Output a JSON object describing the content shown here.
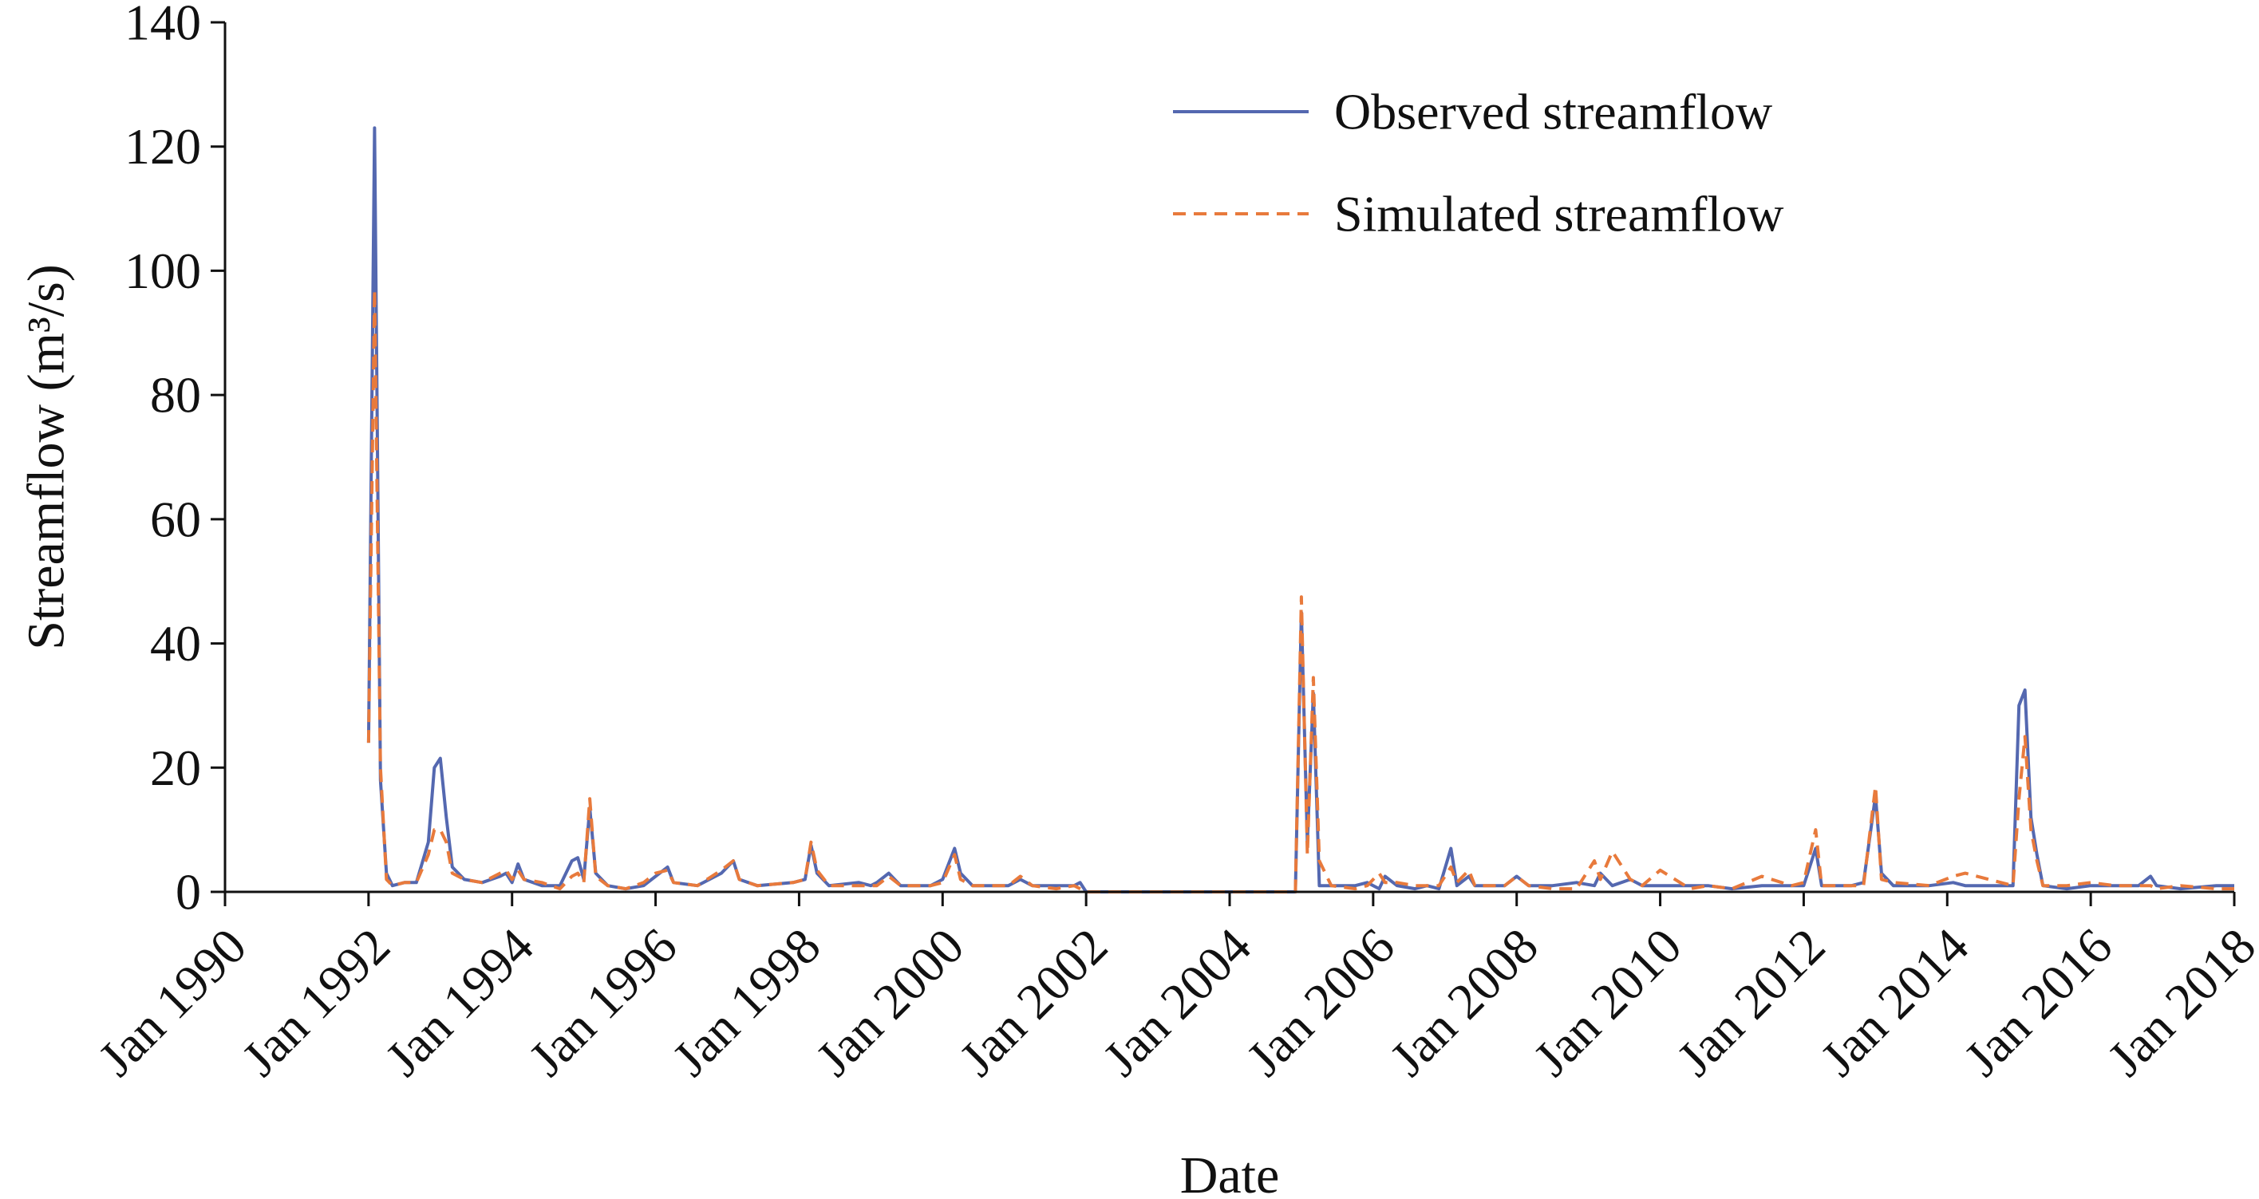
{
  "chart_data": {
    "type": "line",
    "xlabel": "Date",
    "ylabel": "Streamflow (m³/s)",
    "xlim": [
      "1990-01",
      "2018-01"
    ],
    "ylim": [
      0,
      140
    ],
    "y_ticks": [
      0,
      20,
      40,
      60,
      80,
      100,
      120,
      140
    ],
    "x_ticks": [
      {
        "date": "1990-01",
        "label": "Jan 1990"
      },
      {
        "date": "1992-01",
        "label": "Jan 1992"
      },
      {
        "date": "1994-01",
        "label": "Jan 1994"
      },
      {
        "date": "1996-01",
        "label": "Jan 1996"
      },
      {
        "date": "1998-01",
        "label": "Jan 1998"
      },
      {
        "date": "2000-01",
        "label": "Jan 2000"
      },
      {
        "date": "2002-01",
        "label": "Jan 2002"
      },
      {
        "date": "2004-01",
        "label": "Jan 2004"
      },
      {
        "date": "2006-01",
        "label": "Jan 2006"
      },
      {
        "date": "2008-01",
        "label": "Jan 2008"
      },
      {
        "date": "2010-01",
        "label": "Jan 2010"
      },
      {
        "date": "2012-01",
        "label": "Jan 2012"
      },
      {
        "date": "2014-01",
        "label": "Jan 2014"
      },
      {
        "date": "2016-01",
        "label": "Jan 2016"
      },
      {
        "date": "2018-01",
        "label": "Jan 2018"
      }
    ],
    "grid": false,
    "legend_position": "top-right",
    "series": [
      {
        "name": "Observed streamflow",
        "color": "#5468b0",
        "style": "solid",
        "points": [
          [
            "1992-01",
            24
          ],
          [
            "1992-02",
            123
          ],
          [
            "1992-03",
            18
          ],
          [
            "1992-04",
            3
          ],
          [
            "1992-05",
            1
          ],
          [
            "1992-07",
            1.5
          ],
          [
            "1992-09",
            1.5
          ],
          [
            "1992-11",
            8
          ],
          [
            "1992-12",
            20
          ],
          [
            "1993-01",
            21.5
          ],
          [
            "1993-02",
            12
          ],
          [
            "1993-03",
            4
          ],
          [
            "1993-05",
            2
          ],
          [
            "1993-08",
            1.5
          ],
          [
            "1993-11",
            2.5
          ],
          [
            "1993-12",
            3
          ],
          [
            "1994-01",
            1.5
          ],
          [
            "1994-02",
            4.5
          ],
          [
            "1994-03",
            2
          ],
          [
            "1994-06",
            1
          ],
          [
            "1994-09",
            1
          ],
          [
            "1994-11",
            5
          ],
          [
            "1994-12",
            5.5
          ],
          [
            "1995-01",
            2
          ],
          [
            "1995-02",
            13.5
          ],
          [
            "1995-03",
            3
          ],
          [
            "1995-05",
            1
          ],
          [
            "1995-08",
            0.5
          ],
          [
            "1995-11",
            1
          ],
          [
            "1996-01",
            2.5
          ],
          [
            "1996-03",
            4
          ],
          [
            "1996-04",
            1.5
          ],
          [
            "1996-08",
            1
          ],
          [
            "1996-12",
            3
          ],
          [
            "1997-02",
            5
          ],
          [
            "1997-03",
            2
          ],
          [
            "1997-06",
            1
          ],
          [
            "1997-12",
            1.5
          ],
          [
            "1998-02",
            2
          ],
          [
            "1998-03",
            7.5
          ],
          [
            "1998-04",
            3
          ],
          [
            "1998-06",
            1
          ],
          [
            "1998-11",
            1.5
          ],
          [
            "1999-01",
            1
          ],
          [
            "1999-02",
            1.5
          ],
          [
            "1999-04",
            3
          ],
          [
            "1999-06",
            1
          ],
          [
            "1999-11",
            1
          ],
          [
            "2000-01",
            2
          ],
          [
            "2000-03",
            7
          ],
          [
            "2000-04",
            3
          ],
          [
            "2000-06",
            1
          ],
          [
            "2000-10",
            1
          ],
          [
            "2000-12",
            1
          ],
          [
            "2001-02",
            2
          ],
          [
            "2001-04",
            1
          ],
          [
            "2001-08",
            1
          ],
          [
            "2001-11",
            1
          ],
          [
            "2001-12",
            1.5
          ],
          [
            "2002-01",
            0
          ],
          [
            "2004-12",
            0
          ],
          [
            "2005-01",
            45
          ],
          [
            "2005-02",
            8
          ],
          [
            "2005-03",
            32
          ],
          [
            "2005-04",
            1
          ],
          [
            "2005-06",
            1
          ],
          [
            "2005-10",
            1
          ],
          [
            "2005-12",
            1.5
          ],
          [
            "2006-02",
            0.5
          ],
          [
            "2006-03",
            2.5
          ],
          [
            "2006-05",
            1
          ],
          [
            "2006-08",
            0.5
          ],
          [
            "2006-10",
            1
          ],
          [
            "2006-12",
            0.5
          ],
          [
            "2007-02",
            7
          ],
          [
            "2007-03",
            1
          ],
          [
            "2007-05",
            2.5
          ],
          [
            "2007-06",
            1
          ],
          [
            "2007-11",
            1
          ],
          [
            "2008-01",
            2.5
          ],
          [
            "2008-03",
            1
          ],
          [
            "2008-07",
            1
          ],
          [
            "2008-11",
            1.5
          ],
          [
            "2009-02",
            1
          ],
          [
            "2009-03",
            3
          ],
          [
            "2009-05",
            1
          ],
          [
            "2009-08",
            2
          ],
          [
            "2009-10",
            1
          ],
          [
            "2010-01",
            1
          ],
          [
            "2010-06",
            1
          ],
          [
            "2010-09",
            1
          ],
          [
            "2011-01",
            0.5
          ],
          [
            "2011-06",
            1
          ],
          [
            "2011-11",
            1
          ],
          [
            "2012-01",
            1
          ],
          [
            "2012-03",
            7
          ],
          [
            "2012-04",
            1
          ],
          [
            "2012-09",
            1
          ],
          [
            "2012-11",
            1.5
          ],
          [
            "2013-01",
            15.5
          ],
          [
            "2013-02",
            3
          ],
          [
            "2013-04",
            1
          ],
          [
            "2013-10",
            1
          ],
          [
            "2014-02",
            1.5
          ],
          [
            "2014-04",
            1
          ],
          [
            "2014-12",
            1
          ],
          [
            "2015-01",
            30
          ],
          [
            "2015-02",
            32.5
          ],
          [
            "2015-03",
            12
          ],
          [
            "2015-04",
            6
          ],
          [
            "2015-05",
            1
          ],
          [
            "2015-09",
            0.5
          ],
          [
            "2016-01",
            1
          ],
          [
            "2016-05",
            1
          ],
          [
            "2016-09",
            1
          ],
          [
            "2016-11",
            2.5
          ],
          [
            "2016-12",
            1
          ],
          [
            "2017-04",
            0.5
          ],
          [
            "2017-10",
            1
          ],
          [
            "2018-01",
            1
          ]
        ]
      },
      {
        "name": "Simulated streamflow",
        "color": "#e87a3c",
        "style": "dashed",
        "points": [
          [
            "1992-01",
            24
          ],
          [
            "1992-02",
            97
          ],
          [
            "1992-03",
            20
          ],
          [
            "1992-04",
            2
          ],
          [
            "1992-05",
            1
          ],
          [
            "1992-07",
            1.5
          ],
          [
            "1992-09",
            1.5
          ],
          [
            "1992-11",
            6
          ],
          [
            "1992-12",
            10
          ],
          [
            "1993-01",
            10
          ],
          [
            "1993-02",
            8
          ],
          [
            "1993-03",
            3
          ],
          [
            "1993-05",
            2
          ],
          [
            "1993-08",
            1.5
          ],
          [
            "1993-11",
            3
          ],
          [
            "1993-12",
            3.5
          ],
          [
            "1994-01",
            2
          ],
          [
            "1994-02",
            3.5
          ],
          [
            "1994-03",
            2
          ],
          [
            "1994-06",
            1.5
          ],
          [
            "1994-09",
            0.5
          ],
          [
            "1994-11",
            2.5
          ],
          [
            "1994-12",
            3
          ],
          [
            "1995-01",
            1.5
          ],
          [
            "1995-02",
            15
          ],
          [
            "1995-03",
            2.5
          ],
          [
            "1995-05",
            1
          ],
          [
            "1995-08",
            0.5
          ],
          [
            "1995-11",
            1.5
          ],
          [
            "1996-01",
            3
          ],
          [
            "1996-03",
            3.5
          ],
          [
            "1996-04",
            1.5
          ],
          [
            "1996-08",
            1
          ],
          [
            "1996-12",
            3.5
          ],
          [
            "1997-02",
            5
          ],
          [
            "1997-03",
            2
          ],
          [
            "1997-06",
            1
          ],
          [
            "1997-12",
            1.5
          ],
          [
            "1998-02",
            2
          ],
          [
            "1998-03",
            8
          ],
          [
            "1998-04",
            3.5
          ],
          [
            "1998-06",
            1
          ],
          [
            "1998-11",
            1
          ],
          [
            "1999-01",
            1
          ],
          [
            "1999-02",
            1
          ],
          [
            "1999-04",
            2.5
          ],
          [
            "1999-06",
            1
          ],
          [
            "1999-11",
            1
          ],
          [
            "2000-01",
            1.5
          ],
          [
            "2000-03",
            6
          ],
          [
            "2000-04",
            2
          ],
          [
            "2000-06",
            1
          ],
          [
            "2000-10",
            1
          ],
          [
            "2000-12",
            1
          ],
          [
            "2001-02",
            2.5
          ],
          [
            "2001-04",
            1
          ],
          [
            "2001-08",
            0.5
          ],
          [
            "2001-11",
            1
          ],
          [
            "2001-12",
            0.5
          ],
          [
            "2002-01",
            0
          ],
          [
            "2004-12",
            0
          ],
          [
            "2005-01",
            47.5
          ],
          [
            "2005-02",
            6
          ],
          [
            "2005-03",
            34.5
          ],
          [
            "2005-04",
            5
          ],
          [
            "2005-06",
            1
          ],
          [
            "2005-10",
            0.5
          ],
          [
            "2005-12",
            1
          ],
          [
            "2006-02",
            3
          ],
          [
            "2006-03",
            1.5
          ],
          [
            "2006-05",
            1.5
          ],
          [
            "2006-08",
            1
          ],
          [
            "2006-10",
            1
          ],
          [
            "2006-12",
            1
          ],
          [
            "2007-02",
            4
          ],
          [
            "2007-03",
            1.5
          ],
          [
            "2007-05",
            3.5
          ],
          [
            "2007-06",
            1
          ],
          [
            "2007-11",
            1
          ],
          [
            "2008-01",
            2.5
          ],
          [
            "2008-03",
            1
          ],
          [
            "2008-07",
            0.5
          ],
          [
            "2008-11",
            0.5
          ],
          [
            "2009-02",
            5
          ],
          [
            "2009-03",
            2
          ],
          [
            "2009-05",
            6.5
          ],
          [
            "2009-08",
            2
          ],
          [
            "2009-10",
            1
          ],
          [
            "2010-01",
            3.5
          ],
          [
            "2010-06",
            0.5
          ],
          [
            "2010-09",
            1
          ],
          [
            "2011-01",
            0.5
          ],
          [
            "2011-06",
            2.5
          ],
          [
            "2011-11",
            1
          ],
          [
            "2012-01",
            1.5
          ],
          [
            "2012-03",
            10
          ],
          [
            "2012-04",
            1
          ],
          [
            "2012-09",
            1
          ],
          [
            "2012-11",
            1
          ],
          [
            "2013-01",
            17
          ],
          [
            "2013-02",
            2
          ],
          [
            "2013-04",
            1.5
          ],
          [
            "2013-10",
            1
          ],
          [
            "2014-02",
            2.5
          ],
          [
            "2014-04",
            3
          ],
          [
            "2014-12",
            1
          ],
          [
            "2015-01",
            15
          ],
          [
            "2015-02",
            25
          ],
          [
            "2015-03",
            10
          ],
          [
            "2015-04",
            5
          ],
          [
            "2015-05",
            1
          ],
          [
            "2015-09",
            1
          ],
          [
            "2016-01",
            1.5
          ],
          [
            "2016-05",
            1
          ],
          [
            "2016-09",
            1
          ],
          [
            "2016-11",
            1
          ],
          [
            "2016-12",
            0.5
          ],
          [
            "2017-04",
            1
          ],
          [
            "2017-10",
            0.5
          ],
          [
            "2018-01",
            0.5
          ]
        ]
      }
    ]
  }
}
